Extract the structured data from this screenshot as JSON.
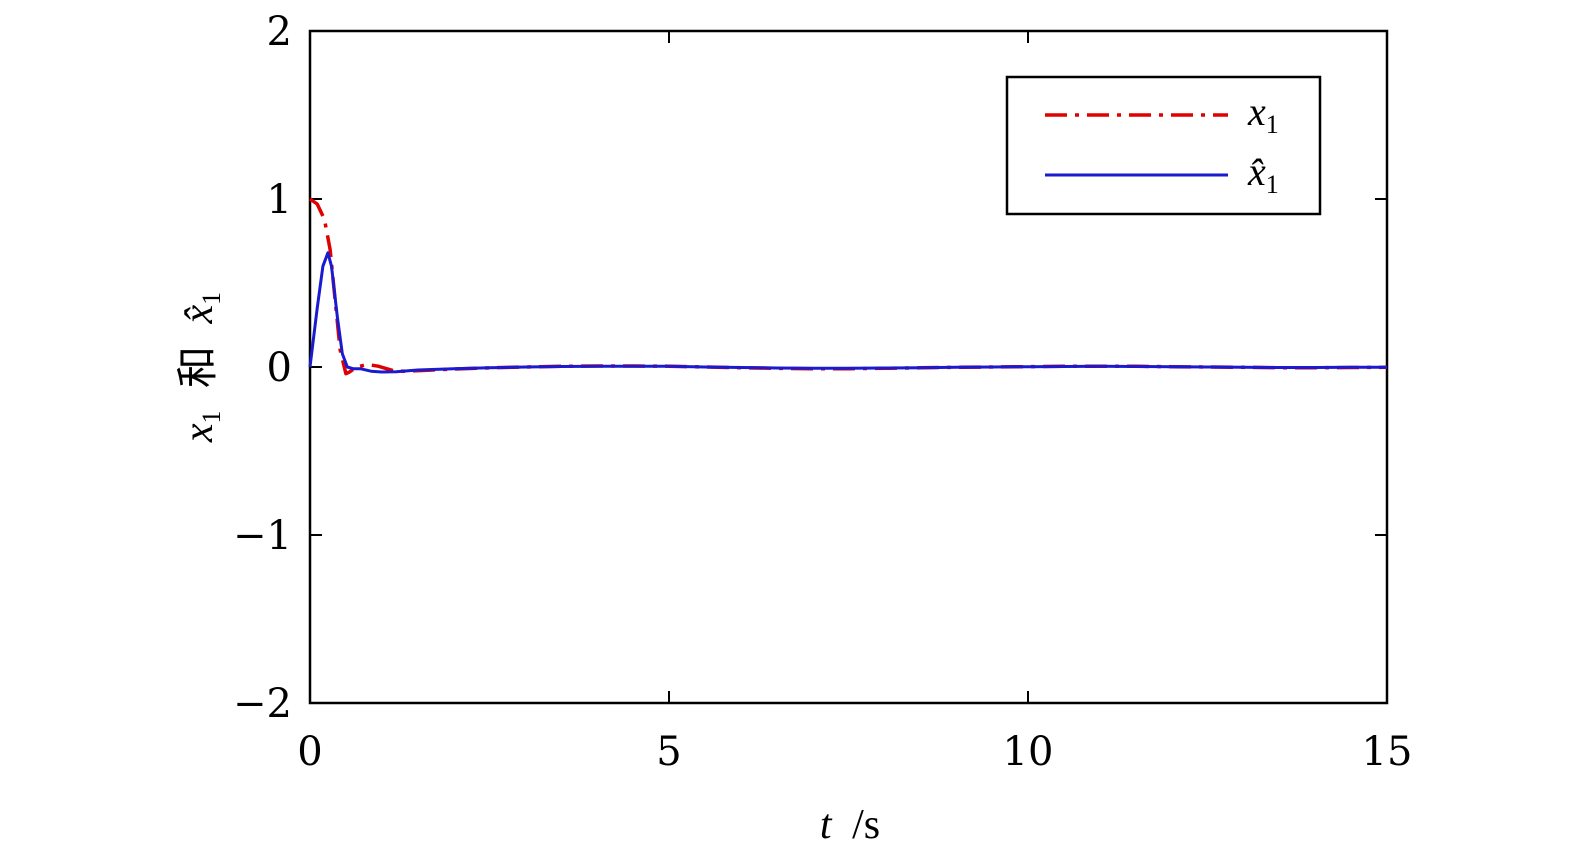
{
  "chart_data": {
    "type": "line",
    "xlabel_var": "t",
    "xlabel_unit": "/s",
    "ylabel_parts": [
      "x",
      "1",
      "和",
      "x̂",
      "1"
    ],
    "xlim": [
      0,
      15
    ],
    "ylim": [
      -2,
      2
    ],
    "xticks": [
      0,
      5,
      10,
      15
    ],
    "xtick_labels": [
      "0",
      "5",
      "10",
      "15"
    ],
    "yticks": [
      -2,
      -1,
      0,
      1,
      2
    ],
    "ytick_labels": [
      "−2",
      "−1",
      "0",
      "1",
      "2"
    ],
    "grid": false,
    "legend_position": "top-right",
    "series": [
      {
        "name": "x1",
        "legend_base": "x",
        "legend_sub": "1",
        "color": "#e00000",
        "style": "dashdot",
        "x": [
          0,
          0.1,
          0.2,
          0.28,
          0.35,
          0.42,
          0.5,
          0.55,
          0.65,
          0.8,
          0.95,
          1.15,
          1.3,
          1.6,
          2,
          2.5,
          3,
          3.5,
          4,
          4.5,
          5,
          5.5,
          6,
          6.5,
          7,
          7.5,
          8,
          8.5,
          9,
          9.5,
          10,
          10.5,
          11,
          11.5,
          12,
          12.5,
          13,
          13.5,
          14,
          14.5,
          15
        ],
        "y": [
          1.0,
          0.97,
          0.88,
          0.7,
          0.4,
          0.1,
          -0.04,
          -0.03,
          0.0,
          0.015,
          0.005,
          -0.02,
          -0.025,
          -0.02,
          -0.012,
          -0.005,
          0.0,
          0.004,
          0.006,
          0.006,
          0.005,
          0.0,
          -0.004,
          -0.008,
          -0.01,
          -0.01,
          -0.008,
          -0.005,
          -0.002,
          0.0,
          0.002,
          0.004,
          0.005,
          0.004,
          0.002,
          0.0,
          -0.002,
          -0.004,
          -0.004,
          -0.003,
          -0.002
        ]
      },
      {
        "name": "x̂1",
        "legend_base": "x̂",
        "legend_sub": "1",
        "color": "#1a1ad0",
        "style": "solid",
        "x": [
          0,
          0.1,
          0.18,
          0.25,
          0.3,
          0.38,
          0.45,
          0.52,
          0.6,
          0.7,
          0.85,
          1.0,
          1.2,
          1.5,
          2,
          2.5,
          3,
          3.5,
          4,
          4.5,
          5,
          5.5,
          6,
          6.5,
          7,
          7.5,
          8,
          8.5,
          9,
          9.5,
          10,
          10.5,
          11,
          11.5,
          12,
          12.5,
          13,
          13.5,
          14,
          14.5,
          15
        ],
        "y": [
          0.0,
          0.35,
          0.6,
          0.68,
          0.6,
          0.3,
          0.08,
          0.0,
          -0.01,
          -0.01,
          -0.025,
          -0.03,
          -0.028,
          -0.018,
          -0.01,
          -0.004,
          0.0,
          0.003,
          0.005,
          0.005,
          0.004,
          0.0,
          -0.003,
          -0.006,
          -0.008,
          -0.008,
          -0.006,
          -0.004,
          -0.002,
          0.0,
          0.002,
          0.003,
          0.004,
          0.003,
          0.002,
          0.0,
          -0.002,
          -0.003,
          -0.003,
          -0.002,
          -0.001
        ]
      }
    ]
  }
}
